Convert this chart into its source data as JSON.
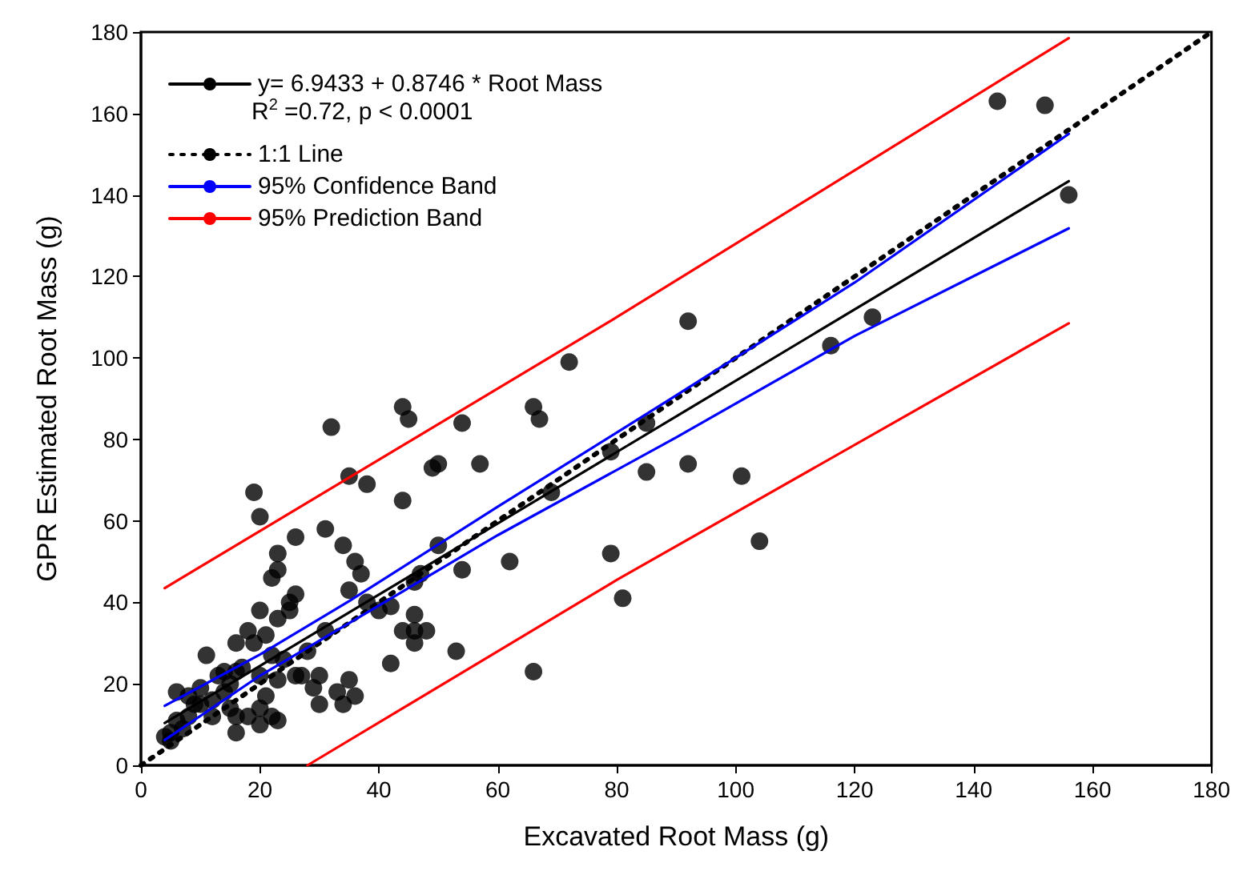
{
  "chart_data": {
    "type": "scatter",
    "xlabel": "Excavated Root Mass (g)",
    "ylabel": "GPR Estimated Root Mass (g)",
    "xlim": [
      0,
      180
    ],
    "xticks": [
      0,
      20,
      40,
      60,
      80,
      100,
      120,
      140,
      160,
      180
    ],
    "ylim": [
      0,
      180
    ],
    "yticks": [
      0,
      20,
      40,
      60,
      80,
      100,
      120,
      140,
      160,
      180
    ],
    "grid": false,
    "legend": "top left",
    "annotations": [
      "R$^{2}$ =0.72, p < 0.0001"
    ],
    "series": [
      {
        "color": "#000000",
        "marker": "circle",
        "x": [
          144,
          152,
          156,
          123,
          116,
          92,
          92,
          101,
          104,
          85,
          85,
          79,
          79,
          81,
          72,
          66,
          67,
          69,
          66,
          62,
          57,
          54,
          54,
          53,
          50,
          49,
          50,
          44,
          45,
          44,
          47,
          46,
          46,
          46,
          44,
          46,
          48,
          42,
          42,
          40,
          38,
          38,
          37,
          36,
          35,
          34,
          32,
          35,
          36,
          34,
          35,
          33,
          31,
          31,
          30,
          30,
          29,
          28,
          27,
          26,
          26,
          25,
          26,
          25,
          23,
          23,
          23,
          22,
          22,
          21,
          22,
          23,
          23,
          24,
          21,
          20,
          20,
          20,
          19,
          20,
          20,
          19,
          18,
          18,
          17,
          16,
          16,
          16,
          16,
          15,
          15,
          14,
          14,
          13,
          12,
          12,
          11,
          10,
          10,
          9,
          8,
          8,
          7,
          6,
          6,
          5,
          5,
          4
        ],
        "values": [
          163,
          162,
          140,
          110,
          103,
          109,
          74,
          71,
          55,
          84,
          72,
          77,
          52,
          41,
          99,
          88,
          85,
          67,
          23,
          50,
          74,
          84,
          48,
          28,
          74,
          73,
          54,
          88,
          85,
          65,
          47,
          45,
          37,
          33,
          33,
          30,
          33,
          39,
          25,
          38,
          69,
          40,
          47,
          50,
          71,
          54,
          83,
          43,
          17,
          15,
          21,
          18,
          58,
          33,
          22,
          15,
          19,
          28,
          22,
          22,
          42,
          40,
          56,
          38,
          48,
          52,
          36,
          46,
          27,
          32,
          12,
          11,
          21,
          26,
          17,
          22,
          14,
          10,
          67,
          61,
          38,
          30,
          33,
          12,
          24,
          23,
          30,
          12,
          8,
          14,
          20,
          18,
          23,
          22,
          16,
          12,
          27,
          19,
          15,
          15,
          17,
          12,
          9,
          18,
          11,
          8,
          6,
          7
        ]
      },
      {
        "type": "line",
        "name": "y= 6.9433 + 0.8746 * Root Mass",
        "color": "#000000",
        "marker": "none",
        "line_style": "solid",
        "x": [
          4,
          156
        ],
        "values": [
          10.4,
          143.4
        ]
      },
      {
        "type": "line",
        "name": "1:1 Line",
        "color": "#000000",
        "marker": "none",
        "line_style": "dotted",
        "x": [
          0,
          180
        ],
        "values": [
          0,
          180
        ]
      },
      {
        "type": "line",
        "name": "95% Confidence Band",
        "color": "#0000ff",
        "marker": "none",
        "line_style": "solid",
        "x": [
          4,
          20,
          35,
          60,
          90,
          120,
          156
        ],
        "values": [
          14.6,
          27.2,
          40.3,
          63.5,
          90.8,
          118.5,
          155
        ]
      },
      {
        "type": "line",
        "color": "#0000ff",
        "marker": "none",
        "line_style": "solid",
        "x": [
          4,
          20,
          35,
          60,
          90,
          120,
          156
        ],
        "values": [
          6.2,
          22,
          34.9,
          56.5,
          80.5,
          105.4,
          131.8
        ]
      },
      {
        "type": "line",
        "name": "95% Prediction Band",
        "color": "#ff0000",
        "marker": "none",
        "line_style": "solid",
        "x": [
          4,
          80,
          156
        ],
        "values": [
          43.5,
          110,
          178.5
        ]
      },
      {
        "type": "line",
        "color": "#ff0000",
        "marker": "none",
        "line_style": "solid",
        "x": [
          28,
          80,
          156
        ],
        "values": [
          0,
          45.5,
          108.5
        ]
      }
    ]
  }
}
